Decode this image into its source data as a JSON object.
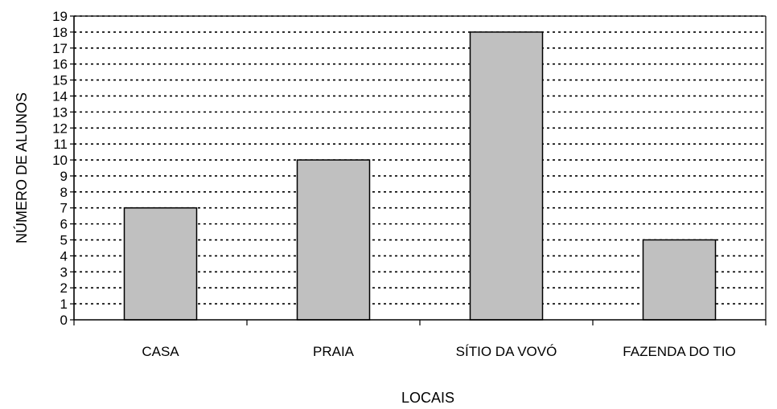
{
  "chart_data": {
    "type": "bar",
    "title": "",
    "xlabel": "LOCAIS",
    "ylabel": "NÚMERO DE ALUNOS",
    "categories": [
      "CASA",
      "PRAIA",
      "SÍTIO DA VOVÓ",
      "FAZENDA DO TIO"
    ],
    "values": [
      7,
      10,
      18,
      5
    ],
    "ylim": [
      0,
      19
    ],
    "yticks": [
      "0",
      "1",
      "2",
      "3",
      "4",
      "5",
      "6",
      "7",
      "8",
      "9",
      "10",
      "11",
      "12",
      "13",
      "14",
      "15",
      "16",
      "17",
      "18",
      "19"
    ],
    "grid": true,
    "grid_style": "dotted",
    "legend": "none",
    "colors": {
      "bar_fill": "#c0c0c0",
      "bar_stroke": "#000000",
      "grid": "#000000"
    }
  }
}
